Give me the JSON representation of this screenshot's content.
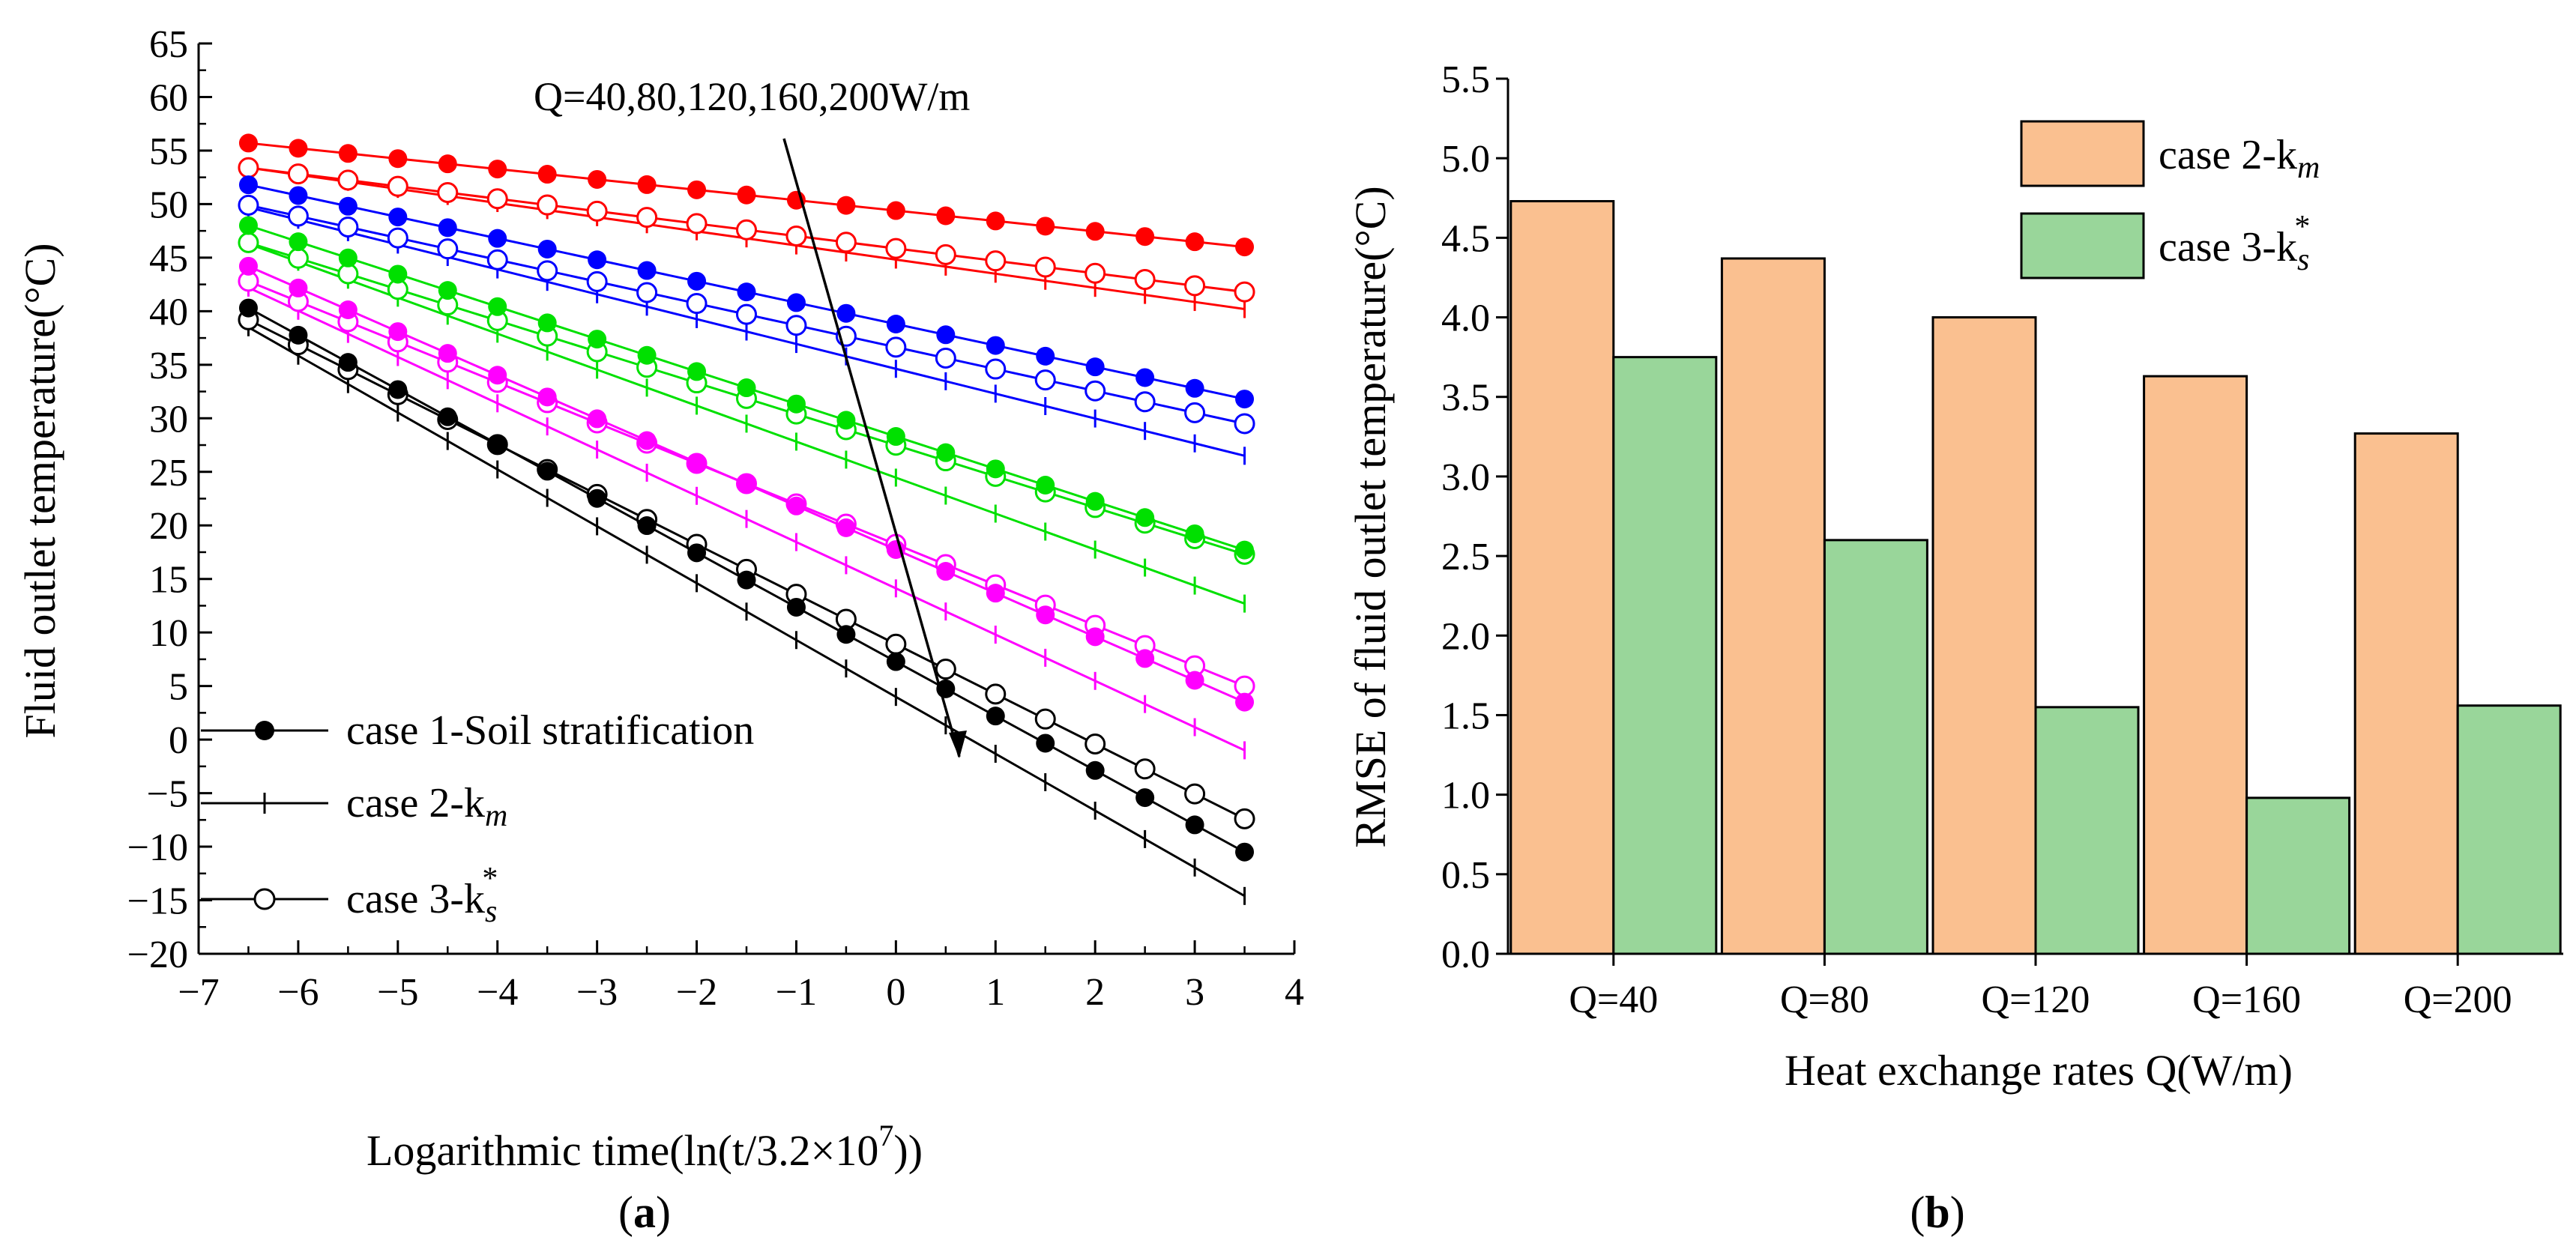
{
  "chart_data": [
    {
      "type": "line",
      "panel_label": "a",
      "xlabel": "Logarithmic time(ln(t/3.2×10",
      "xlabel_sup": "7",
      "xlabel_tail": "))",
      "ylabel": "Fluid outlet temperature(°C)",
      "xlim": [
        -7,
        4
      ],
      "ylim": [
        -20,
        65
      ],
      "x_ticks": [
        "−7",
        "−6",
        "−5",
        "−4",
        "−3",
        "−2",
        "−1",
        "0",
        "1",
        "2",
        "3",
        "4"
      ],
      "y_ticks": [
        "−20",
        "−15",
        "−10",
        "−5",
        "0",
        "5",
        "10",
        "15",
        "20",
        "25",
        "30",
        "35",
        "40",
        "45",
        "50",
        "55",
        "60",
        "65"
      ],
      "annotation": "Q=40,80,120,160,200W/m",
      "legend": [
        {
          "label": "case 1-Soil stratification",
          "marker": "filled-circle"
        },
        {
          "label": "case 2-k",
          "sub": "m",
          "marker": "plus"
        },
        {
          "label": "case 3-k",
          "sub": "s",
          "sup": "*",
          "marker": "open-circle"
        }
      ],
      "x": [
        -6.5,
        -6.0,
        -5.5,
        -5.0,
        -4.5,
        -4.0,
        -3.5,
        -3.0,
        -2.5,
        -2.0,
        -1.5,
        -1.0,
        -0.5,
        0.0,
        0.5,
        1.0,
        1.5,
        2.0,
        2.5,
        3.0,
        3.5
      ],
      "groups": [
        {
          "Q": "40",
          "color": "#ff0000",
          "case1": [
            55.7,
            46.0
          ],
          "case2": [
            53.4,
            40.2
          ],
          "case3": [
            53.4,
            41.8
          ]
        },
        {
          "Q": "80",
          "color": "#0000ff",
          "case1": [
            51.8,
            31.8
          ],
          "case2": [
            49.7,
            26.5
          ],
          "case3": [
            49.9,
            29.5
          ]
        },
        {
          "Q": "120",
          "color": "#00e000",
          "case1": [
            48.0,
            17.7
          ],
          "case2": [
            46.3,
            12.7
          ],
          "case3": [
            46.4,
            17.3
          ]
        },
        {
          "Q": "160",
          "color": "#ff00ff",
          "case1": [
            44.2,
            3.5
          ],
          "case2": [
            42.2,
            -1.0
          ],
          "case3": [
            42.8,
            5.0
          ]
        },
        {
          "Q": "200",
          "color": "#000000",
          "case1": [
            40.3,
            -10.5
          ],
          "case2": [
            38.5,
            -14.6
          ],
          "case3": [
            39.2,
            -7.4
          ]
        }
      ]
    },
    {
      "type": "bar",
      "panel_label": "b",
      "xlabel": "Heat exchange rates Q(W/m)",
      "ylabel": "RMSE of fluid outlet temperature(°C)",
      "ylim": [
        0,
        5.5
      ],
      "y_ticks": [
        "0.0",
        "0.5",
        "1.0",
        "1.5",
        "2.0",
        "2.5",
        "3.0",
        "3.5",
        "4.0",
        "4.5",
        "5.0",
        "5.5"
      ],
      "categories": [
        "Q=40",
        "Q=80",
        "Q=120",
        "Q=160",
        "Q=200"
      ],
      "series": [
        {
          "name": "case 2-k",
          "sub": "m",
          "color": "#fac090",
          "values": [
            4.73,
            4.37,
            4.0,
            3.63,
            3.27
          ]
        },
        {
          "name": "case 3-k",
          "sub": "s",
          "sup": "*",
          "color": "#99d69a",
          "values": [
            3.75,
            2.6,
            1.55,
            0.98,
            1.56
          ]
        }
      ]
    }
  ]
}
